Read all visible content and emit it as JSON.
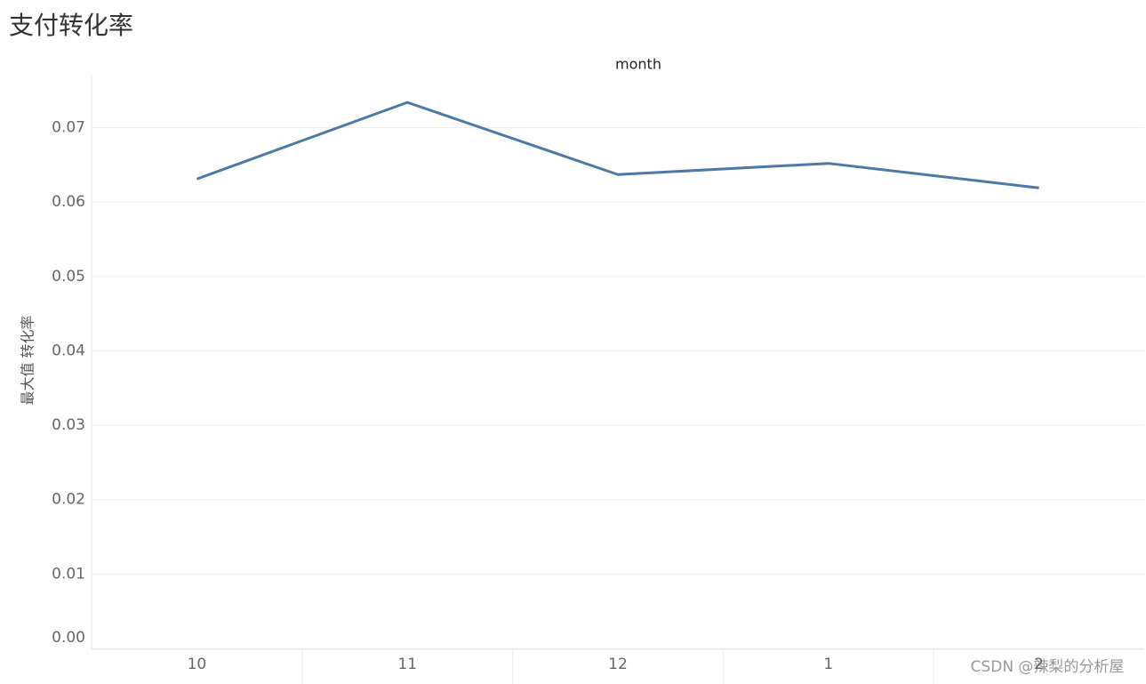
{
  "chart_data": {
    "type": "line",
    "title": "支付转化率",
    "x_label": "month",
    "y_label": "最大值 转化率",
    "categories": [
      "10",
      "11",
      "12",
      "1",
      "2"
    ],
    "series": [
      {
        "name": "最大值 转化率",
        "color": "#4e79a7",
        "values": [
          0.0631,
          0.0734,
          0.0637,
          0.0652,
          0.0619
        ]
      }
    ],
    "ylim": [
      0,
      0.077
    ],
    "yticks": [
      {
        "value": 0,
        "label": "0.00"
      },
      0.01,
      0.02,
      0.03,
      0.04,
      0.05,
      0.06,
      0.07
    ],
    "grid": true,
    "watermark": "CSDN @辣梨的分析屋"
  }
}
